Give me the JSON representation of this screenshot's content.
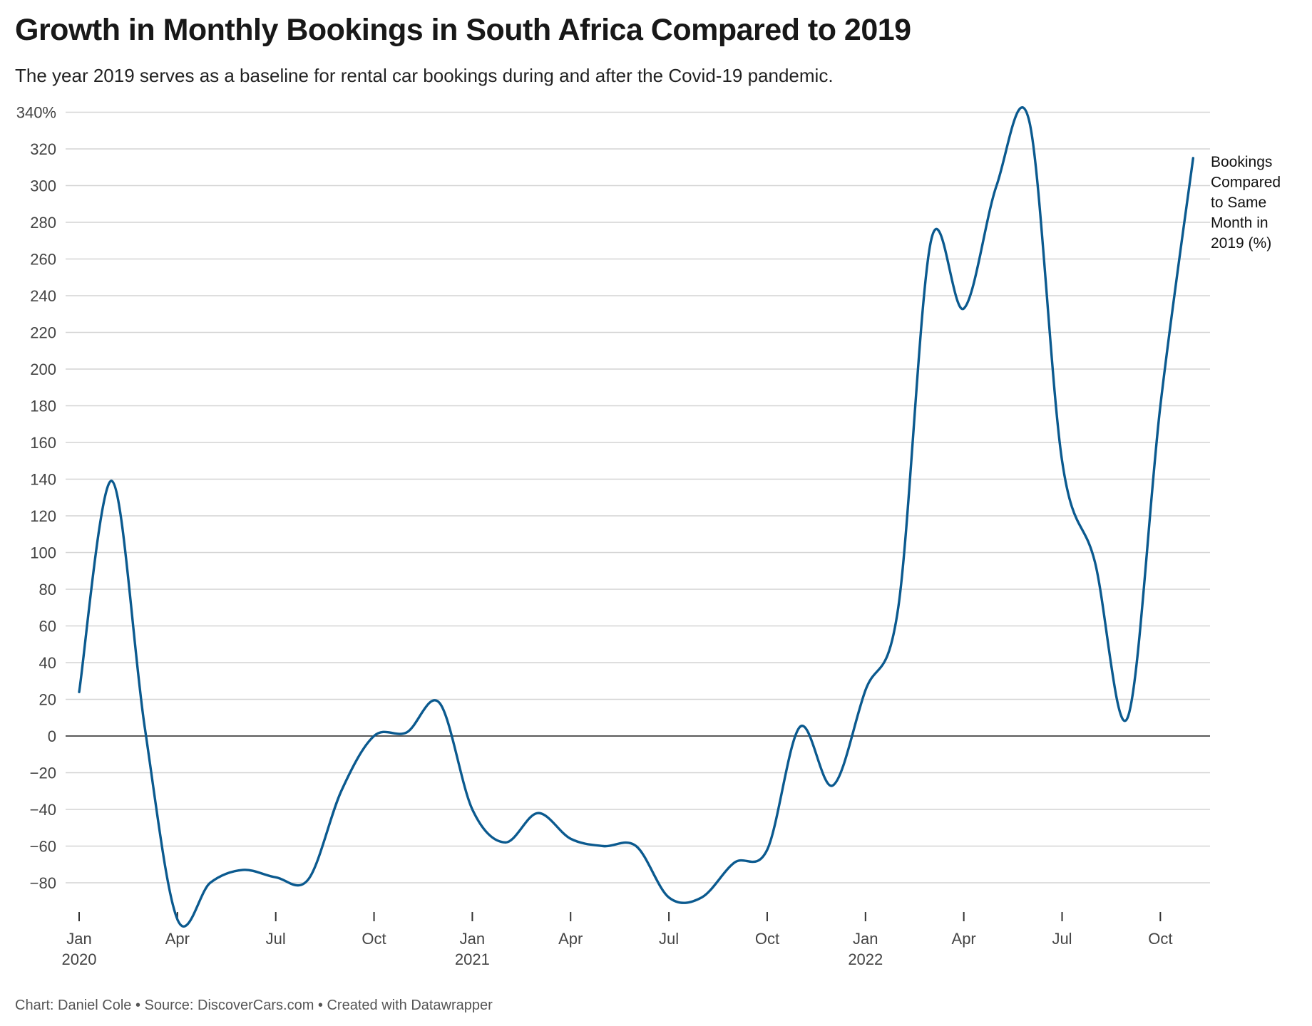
{
  "title": "Growth in Monthly Bookings in South Africa Compared to 2019",
  "subtitle": "The year 2019 serves as a baseline for rental car bookings during and after the Covid-19 pandemic.",
  "footer": "Chart: Daniel Cole • Source: DiscoverCars.com • Created with Datawrapper",
  "chart_data": {
    "type": "line",
    "title": "Growth in Monthly Bookings in South Africa Compared to 2019",
    "ylim": [
      -100,
      345
    ],
    "yticks": [
      -80,
      -60,
      -40,
      -20,
      0,
      20,
      40,
      60,
      80,
      100,
      120,
      140,
      160,
      180,
      200,
      220,
      240,
      260,
      280,
      300,
      320,
      340
    ],
    "ytick_labels": [
      "−80",
      "−60",
      "−40",
      "−20",
      "0",
      "20",
      "40",
      "60",
      "80",
      "100",
      "120",
      "140",
      "160",
      "180",
      "200",
      "220",
      "240",
      "260",
      "280",
      "300",
      "320",
      "340%"
    ],
    "xticks": [
      {
        "month": "2020-01",
        "label": "Jan",
        "year": "2020"
      },
      {
        "month": "2020-04",
        "label": "Apr",
        "year": ""
      },
      {
        "month": "2020-07",
        "label": "Jul",
        "year": ""
      },
      {
        "month": "2020-10",
        "label": "Oct",
        "year": ""
      },
      {
        "month": "2021-01",
        "label": "Jan",
        "year": "2021"
      },
      {
        "month": "2021-04",
        "label": "Apr",
        "year": ""
      },
      {
        "month": "2021-07",
        "label": "Jul",
        "year": ""
      },
      {
        "month": "2021-10",
        "label": "Oct",
        "year": ""
      },
      {
        "month": "2022-01",
        "label": "Jan",
        "year": "2022"
      },
      {
        "month": "2022-04",
        "label": "Apr",
        "year": ""
      },
      {
        "month": "2022-07",
        "label": "Jul",
        "year": ""
      },
      {
        "month": "2022-10",
        "label": "Oct",
        "year": ""
      }
    ],
    "grid": true,
    "line_color": "#0b5a8f",
    "series": [
      {
        "name": "Bookings Compared to Same Month in 2019 (%)",
        "label_lines": [
          "Bookings",
          "Compared",
          "to Same",
          "Month in",
          "2019 (%)"
        ],
        "x": [
          "2020-01",
          "2020-02",
          "2020-03",
          "2020-04",
          "2020-05",
          "2020-06",
          "2020-07",
          "2020-08",
          "2020-09",
          "2020-10",
          "2020-11",
          "2020-12",
          "2021-01",
          "2021-02",
          "2021-03",
          "2021-04",
          "2021-05",
          "2021-06",
          "2021-07",
          "2021-08",
          "2021-09",
          "2021-10",
          "2021-11",
          "2021-12",
          "2022-01",
          "2022-02",
          "2022-03",
          "2022-04",
          "2022-05",
          "2022-06",
          "2022-07",
          "2022-08",
          "2022-09",
          "2022-10",
          "2022-11"
        ],
        "values": [
          24,
          139,
          5,
          -100,
          -80,
          -73,
          -77,
          -78,
          -30,
          0,
          2,
          18,
          -40,
          -58,
          -42,
          -56,
          -60,
          -60,
          -88,
          -88,
          -69,
          -62,
          5,
          -27,
          25,
          70,
          270,
          233,
          300,
          335,
          150,
          95,
          10,
          180,
          315
        ]
      }
    ]
  }
}
